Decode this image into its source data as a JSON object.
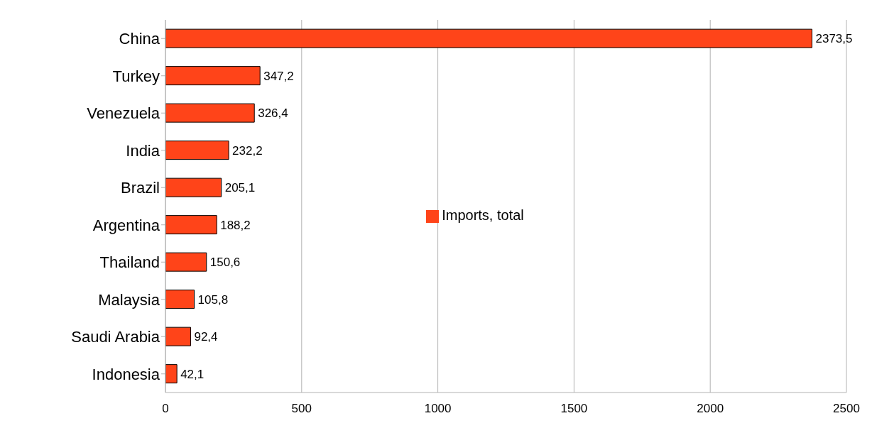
{
  "chart_data": {
    "type": "bar",
    "orientation": "horizontal",
    "categories": [
      "China",
      "Turkey",
      "Venezuela",
      "India",
      "Brazil",
      "Argentina",
      "Thailand",
      "Malaysia",
      "Saudi Arabia",
      "Indonesia"
    ],
    "series": [
      {
        "name": "Imports, total",
        "color": "#ff4419",
        "values": [
          2373.5,
          347.2,
          326.4,
          232.2,
          205.1,
          188.2,
          150.6,
          105.8,
          92.4,
          42.1
        ],
        "value_labels": [
          "2373,5",
          "347,2",
          "326,4",
          "232,2",
          "205,1",
          "188,2",
          "150,6",
          "105,8",
          "92,4",
          "42,1"
        ]
      }
    ],
    "xlim": [
      0,
      2500
    ],
    "xticks": [
      0,
      500,
      1000,
      1500,
      2000,
      2500
    ],
    "grid": "x",
    "legend": "center"
  }
}
